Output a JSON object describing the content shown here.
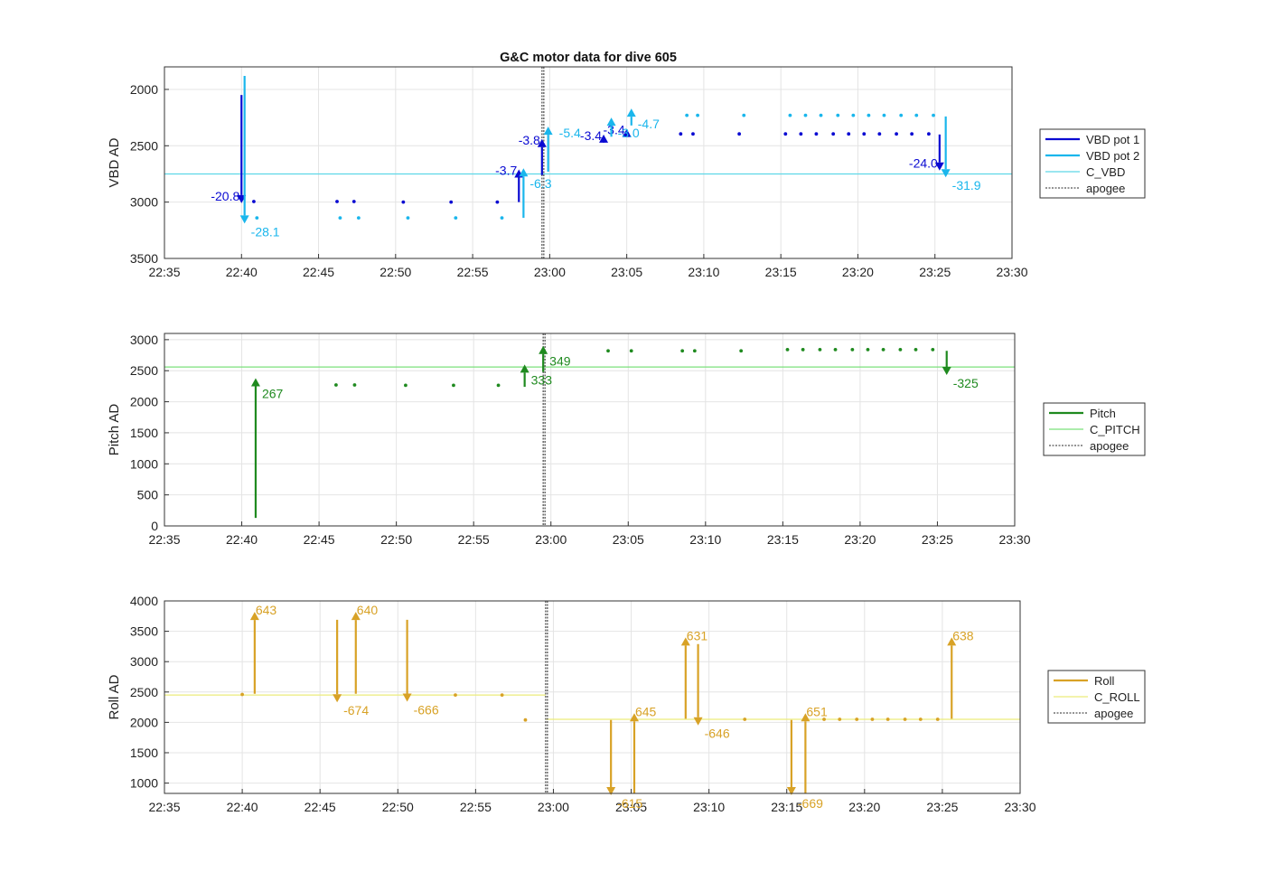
{
  "title": "G&C motor data for dive 605",
  "colors": {
    "vbd1": "#0a0ad2",
    "vbd2": "#1ab6ec",
    "cvbd": "#5ed8e8",
    "pitch": "#1f8a1f",
    "cpitch": "#7be07b",
    "roll": "#d8a226",
    "croll": "#ecec7a",
    "apogee": "#555555"
  },
  "chart_data": [
    {
      "type": "line",
      "name": "vbd",
      "ylabel": "VBD AD",
      "xlabel": "",
      "xlim": [
        "22:35",
        "23:30"
      ],
      "ylim": [
        3500,
        1800
      ],
      "y_reversed": true,
      "x_ticks": [
        "22:35",
        "22:40",
        "22:45",
        "22:50",
        "22:55",
        "23:00",
        "23:05",
        "23:10",
        "23:15",
        "23:20",
        "23:25",
        "23:30"
      ],
      "y_ticks": [
        2000,
        2500,
        3000,
        3500
      ],
      "grid": true,
      "legend_position": "right",
      "legend": [
        {
          "label": "VBD pot 1",
          "style": "thick",
          "color_key": "vbd1"
        },
        {
          "label": "VBD pot 2",
          "style": "thick",
          "color_key": "vbd2"
        },
        {
          "label": "C_VBD",
          "style": "thin",
          "color_key": "cvbd"
        },
        {
          "label": "apogee",
          "style": "dotted",
          "color_key": "apogee"
        }
      ],
      "hlines": [
        {
          "y": 2750,
          "color_key": "cvbd"
        }
      ],
      "apogee_x": "22:59.5",
      "series": [
        {
          "name": "VBD pot 1",
          "color_key": "vbd1",
          "points": [
            [
              "22:40.8",
              2995
            ],
            [
              "22:46.2",
              2995
            ],
            [
              "22:47.3",
              2995
            ],
            [
              "22:50.5",
              3000
            ],
            [
              "22:53.6",
              3000
            ],
            [
              "22:56.6",
              3000
            ],
            [
              "23:08.5",
              2395
            ],
            [
              "23:09.3",
              2395
            ],
            [
              "23:12.3",
              2395
            ],
            [
              "23:15.3",
              2395
            ],
            [
              "23:16.3",
              2395
            ],
            [
              "23:17.3",
              2395
            ],
            [
              "23:18.4",
              2395
            ],
            [
              "23:19.4",
              2395
            ],
            [
              "23:20.4",
              2395
            ],
            [
              "23:21.4",
              2395
            ],
            [
              "23:22.5",
              2395
            ],
            [
              "23:23.5",
              2395
            ],
            [
              "23:24.6",
              2395
            ]
          ],
          "moves": [
            {
              "x": "22:40.0",
              "y0": 2050,
              "y1": 3010,
              "label": "-20.8",
              "label_side": "left"
            },
            {
              "x": "22:58.0",
              "y0": 3000,
              "y1": 2710,
              "label": "-3.7",
              "label_side": "left"
            },
            {
              "x": "22:59.5",
              "y0": 2760,
              "y1": 2440,
              "label": "-3.8",
              "label_side": "left"
            },
            {
              "x": "23:03.5",
              "y0": 2450,
              "y1": 2400,
              "label": "-3.4",
              "label_side": "left"
            },
            {
              "x": "23:05.0",
              "y0": 2420,
              "y1": 2350,
              "label": "-3.4",
              "label_side": "left"
            },
            {
              "x": "23:25.3",
              "y0": 2400,
              "y1": 2720,
              "label": "-24.0",
              "label_side": "left"
            }
          ]
        },
        {
          "name": "VBD pot 2",
          "color_key": "vbd2",
          "points": [
            [
              "22:41.0",
              3140
            ],
            [
              "22:46.4",
              3140
            ],
            [
              "22:47.6",
              3140
            ],
            [
              "22:50.8",
              3140
            ],
            [
              "22:53.9",
              3140
            ],
            [
              "22:56.9",
              3140
            ],
            [
              "23:08.9",
              2230
            ],
            [
              "23:09.6",
              2230
            ],
            [
              "23:12.6",
              2230
            ],
            [
              "23:15.6",
              2230
            ],
            [
              "23:16.6",
              2230
            ],
            [
              "23:17.6",
              2230
            ],
            [
              "23:18.7",
              2230
            ],
            [
              "23:19.7",
              2230
            ],
            [
              "23:20.7",
              2230
            ],
            [
              "23:21.7",
              2230
            ],
            [
              "23:22.8",
              2230
            ],
            [
              "23:23.8",
              2230
            ],
            [
              "23:24.9",
              2230
            ]
          ],
          "moves": [
            {
              "x": "22:40.2",
              "y0": 1880,
              "y1": 3190,
              "label": "-28.1",
              "label_side": "right_below"
            },
            {
              "x": "22:58.3",
              "y0": 3140,
              "y1": 2700,
              "label": "-6.3",
              "label_side": "right_below"
            },
            {
              "x": "22:59.9",
              "y0": 2730,
              "y1": 2330,
              "label": "-5.4",
              "label_side": "right"
            },
            {
              "x": "23:04.0",
              "y0": 2420,
              "y1": 2250,
              "label": "-3.0",
              "label_side": "right_below"
            },
            {
              "x": "23:05.3",
              "y0": 2320,
              "y1": 2170,
              "label": "-4.7",
              "label_side": "right_below"
            },
            {
              "x": "23:25.7",
              "y0": 2240,
              "y1": 2780,
              "label": "-31.9",
              "label_side": "right_below"
            }
          ]
        }
      ]
    },
    {
      "type": "line",
      "name": "pitch",
      "ylabel": "Pitch AD",
      "xlabel": "",
      "xlim": [
        "22:35",
        "23:30"
      ],
      "ylim": [
        0,
        3100
      ],
      "y_reversed": false,
      "x_ticks": [
        "22:35",
        "22:40",
        "22:45",
        "22:50",
        "22:55",
        "23:00",
        "23:05",
        "23:10",
        "23:15",
        "23:20",
        "23:25",
        "23:30"
      ],
      "y_ticks": [
        0,
        500,
        1000,
        1500,
        2000,
        2500,
        3000
      ],
      "grid": true,
      "legend_position": "right",
      "legend": [
        {
          "label": "Pitch",
          "style": "thick",
          "color_key": "pitch"
        },
        {
          "label": "C_PITCH",
          "style": "thin",
          "color_key": "cpitch"
        },
        {
          "label": "apogee",
          "style": "dotted",
          "color_key": "apogee"
        }
      ],
      "hlines": [
        {
          "y": 2560,
          "color_key": "cpitch"
        }
      ],
      "apogee_x": "22:59.5",
      "series": [
        {
          "name": "Pitch",
          "color_key": "pitch",
          "points": [
            [
              "22:46.1",
              2270
            ],
            [
              "22:47.3",
              2270
            ],
            [
              "22:50.6",
              2265
            ],
            [
              "22:53.7",
              2265
            ],
            [
              "22:56.6",
              2265
            ],
            [
              "23:03.7",
              2820
            ],
            [
              "23:05.2",
              2820
            ],
            [
              "23:08.5",
              2820
            ],
            [
              "23:09.3",
              2820
            ],
            [
              "23:12.3",
              2820
            ],
            [
              "23:15.3",
              2840
            ],
            [
              "23:16.3",
              2840
            ],
            [
              "23:17.4",
              2840
            ],
            [
              "23:18.4",
              2840
            ],
            [
              "23:19.5",
              2840
            ],
            [
              "23:20.5",
              2840
            ],
            [
              "23:21.5",
              2840
            ],
            [
              "23:22.6",
              2840
            ],
            [
              "23:23.6",
              2840
            ],
            [
              "23:24.7",
              2840
            ]
          ],
          "moves": [
            {
              "x": "22:40.9",
              "y0": 130,
              "y1": 2380,
              "label": "267",
              "label_side": "right_below"
            },
            {
              "x": "22:58.3",
              "y0": 2240,
              "y1": 2600,
              "label": "333",
              "label_side": "right_below"
            },
            {
              "x": "22:59.5",
              "y0": 2480,
              "y1": 2900,
              "label": "349",
              "label_side": "right_below"
            },
            {
              "x": "23:25.6",
              "y0": 2820,
              "y1": 2430,
              "label": "-325",
              "label_side": "right_below"
            }
          ]
        }
      ]
    },
    {
      "type": "line",
      "name": "roll",
      "ylabel": "Roll AD",
      "xlabel": "",
      "xlim": [
        "22:35",
        "23:30"
      ],
      "ylim": [
        830,
        4000
      ],
      "y_reversed": false,
      "x_ticks": [
        "22:35",
        "22:40",
        "22:45",
        "22:50",
        "22:55",
        "23:00",
        "23:05",
        "23:10",
        "23:15",
        "23:20",
        "23:25",
        "23:30"
      ],
      "y_ticks": [
        1000,
        1500,
        2000,
        2500,
        3000,
        3500,
        4000
      ],
      "grid": true,
      "legend_position": "right",
      "legend": [
        {
          "label": "Roll",
          "style": "thick",
          "color_key": "roll"
        },
        {
          "label": "C_ROLL",
          "style": "thin",
          "color_key": "croll"
        },
        {
          "label": "apogee",
          "style": "dotted",
          "color_key": "apogee"
        }
      ],
      "hlines_segments": [
        {
          "x0": "22:35",
          "x1": "22:59.5",
          "y": 2450,
          "color_key": "croll"
        },
        {
          "x0": "22:59.5",
          "x1": "23:30",
          "y": 2050,
          "color_key": "croll"
        }
      ],
      "apogee_x": "22:59.5",
      "series": [
        {
          "name": "Roll",
          "color_key": "roll",
          "points": [
            [
              "22:40.0",
              2460
            ],
            [
              "22:53.7",
              2450
            ],
            [
              "22:56.7",
              2450
            ],
            [
              "22:58.2",
              2040
            ],
            [
              "23:12.3",
              2050
            ],
            [
              "23:17.4",
              2050
            ],
            [
              "23:18.4",
              2050
            ],
            [
              "23:19.5",
              2050
            ],
            [
              "23:20.5",
              2050
            ],
            [
              "23:21.5",
              2050
            ],
            [
              "23:22.6",
              2050
            ],
            [
              "23:23.6",
              2050
            ],
            [
              "23:24.7",
              2050
            ]
          ],
          "moves": [
            {
              "x": "22:40.8",
              "y0": 2470,
              "y1": 3820,
              "label": "643",
              "label_side": "right_top"
            },
            {
              "x": "22:46.1",
              "y0": 3690,
              "y1": 2330,
              "label": "-674",
              "label_side": "right_below"
            },
            {
              "x": "22:47.3",
              "y0": 2470,
              "y1": 3820,
              "label": "640",
              "label_side": "right_top"
            },
            {
              "x": "22:50.6",
              "y0": 3690,
              "y1": 2340,
              "label": "-666",
              "label_side": "right_below"
            },
            {
              "x": "23:03.7",
              "y0": 2040,
              "y1": 800,
              "label": "-615",
              "label_side": "right_below"
            },
            {
              "x": "23:05.2",
              "y0": 830,
              "y1": 2150,
              "label": "645",
              "label_side": "right_top"
            },
            {
              "x": "23:08.5",
              "y0": 2060,
              "y1": 3400,
              "label": "631",
              "label_side": "right_top"
            },
            {
              "x": "23:09.3",
              "y0": 3290,
              "y1": 1950,
              "label": "-646",
              "label_side": "right_below"
            },
            {
              "x": "23:15.3",
              "y0": 2040,
              "y1": 800,
              "label": "-669",
              "label_side": "right_below"
            },
            {
              "x": "23:16.2",
              "y0": 830,
              "y1": 2150,
              "label": "651",
              "label_side": "right_top"
            },
            {
              "x": "23:25.6",
              "y0": 2060,
              "y1": 3400,
              "label": "638",
              "label_side": "right_top"
            }
          ]
        }
      ]
    }
  ]
}
